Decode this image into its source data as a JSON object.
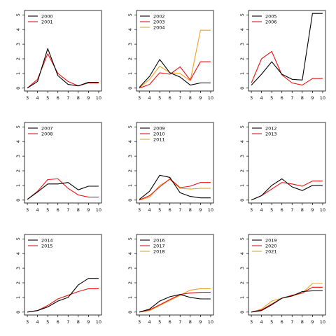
{
  "chart_data": [
    {
      "type": "line",
      "x": [
        3,
        4,
        5,
        6,
        7,
        8,
        9,
        10
      ],
      "y_ticks": [
        0,
        1,
        2,
        3,
        4,
        5
      ],
      "x_ticks": [
        3,
        4,
        5,
        6,
        7,
        8,
        9,
        10
      ],
      "ylim": [
        0,
        5.2
      ],
      "legend": "top-left",
      "series": [
        {
          "name": "2000",
          "color": "#000000",
          "values": [
            0.0,
            0.45,
            2.7,
            0.85,
            0.25,
            0.15,
            0.4,
            0.4
          ]
        },
        {
          "name": "2001",
          "color": "#ee1111",
          "values": [
            0.0,
            0.6,
            2.35,
            1.0,
            0.45,
            0.15,
            0.35,
            0.35
          ]
        }
      ]
    },
    {
      "type": "line",
      "x": [
        3,
        4,
        5,
        6,
        7,
        8,
        9,
        10
      ],
      "y_ticks": [
        0,
        1,
        2,
        3,
        4,
        5
      ],
      "x_ticks": [
        3,
        4,
        5,
        6,
        7,
        8,
        9,
        10
      ],
      "ylim": [
        0,
        5.2
      ],
      "legend": "top-left",
      "series": [
        {
          "name": "2002",
          "color": "#000000",
          "values": [
            0.05,
            0.8,
            1.95,
            1.05,
            0.75,
            0.2,
            0.35,
            0.35
          ]
        },
        {
          "name": "2003",
          "color": "#ee1111",
          "values": [
            0.0,
            0.25,
            1.05,
            0.95,
            1.45,
            0.55,
            1.8,
            1.8
          ]
        },
        {
          "name": "2004",
          "color": "#f0a020",
          "values": [
            0.0,
            0.6,
            1.5,
            1.05,
            1.0,
            0.5,
            3.95,
            3.95
          ]
        }
      ]
    },
    {
      "type": "line",
      "x": [
        3,
        4,
        5,
        6,
        7,
        8,
        9,
        10
      ],
      "y_ticks": [
        0,
        1,
        2,
        3,
        4,
        5
      ],
      "x_ticks": [
        3,
        4,
        5,
        6,
        7,
        8,
        9,
        10
      ],
      "ylim": [
        0,
        5.2
      ],
      "legend": "top-left",
      "series": [
        {
          "name": "2005",
          "color": "#000000",
          "values": [
            0.2,
            0.95,
            1.8,
            0.95,
            0.6,
            0.55,
            5.1,
            5.1
          ]
        },
        {
          "name": "2006",
          "color": "#ee1111",
          "values": [
            0.35,
            2.0,
            2.5,
            0.9,
            0.35,
            0.2,
            0.65,
            0.65
          ]
        }
      ]
    },
    {
      "type": "line",
      "x": [
        3,
        4,
        5,
        6,
        7,
        8,
        9,
        10
      ],
      "y_ticks": [
        0,
        1,
        2,
        3,
        4,
        5
      ],
      "x_ticks": [
        3,
        4,
        5,
        6,
        7,
        8,
        9,
        10
      ],
      "ylim": [
        0,
        5.2
      ],
      "legend": "top-left",
      "series": [
        {
          "name": "2007",
          "color": "#000000",
          "values": [
            0.05,
            0.55,
            1.1,
            1.1,
            1.2,
            0.7,
            0.95,
            0.95
          ]
        },
        {
          "name": "2008",
          "color": "#ee1111",
          "values": [
            0.05,
            0.6,
            1.4,
            1.45,
            0.8,
            0.35,
            0.2,
            0.2
          ]
        }
      ]
    },
    {
      "type": "line",
      "x": [
        3,
        4,
        5,
        6,
        7,
        8,
        9,
        10
      ],
      "y_ticks": [
        0,
        1,
        2,
        3,
        4,
        5
      ],
      "x_ticks": [
        3,
        4,
        5,
        6,
        7,
        8,
        9,
        10
      ],
      "ylim": [
        0,
        5.2
      ],
      "legend": "top-left",
      "series": [
        {
          "name": "2009",
          "color": "#000000",
          "values": [
            0.05,
            0.6,
            1.7,
            1.55,
            0.5,
            0.25,
            0.15,
            0.15
          ]
        },
        {
          "name": "2010",
          "color": "#ee1111",
          "values": [
            0.0,
            0.3,
            0.9,
            1.45,
            0.85,
            0.95,
            1.2,
            1.2
          ]
        },
        {
          "name": "2011",
          "color": "#f0a020",
          "values": [
            0.0,
            0.2,
            1.0,
            1.4,
            0.8,
            0.75,
            0.8,
            0.8
          ]
        }
      ]
    },
    {
      "type": "line",
      "x": [
        3,
        4,
        5,
        6,
        7,
        8,
        9,
        10
      ],
      "y_ticks": [
        0,
        1,
        2,
        3,
        4,
        5
      ],
      "x_ticks": [
        3,
        4,
        5,
        6,
        7,
        8,
        9,
        10
      ],
      "ylim": [
        0,
        5.2
      ],
      "legend": "top-left",
      "series": [
        {
          "name": "2012",
          "color": "#000000",
          "values": [
            0.0,
            0.3,
            1.0,
            1.45,
            0.9,
            0.65,
            1.0,
            1.0
          ]
        },
        {
          "name": "2013",
          "color": "#ee1111",
          "values": [
            0.0,
            0.3,
            0.75,
            1.2,
            1.1,
            0.95,
            1.3,
            1.3
          ]
        }
      ]
    },
    {
      "type": "line",
      "x": [
        3,
        4,
        5,
        6,
        7,
        8,
        9,
        10
      ],
      "y_ticks": [
        0,
        1,
        2,
        3,
        4,
        5
      ],
      "x_ticks": [
        3,
        4,
        5,
        6,
        7,
        8,
        9,
        10
      ],
      "ylim": [
        0,
        5.2
      ],
      "legend": "top-left",
      "series": [
        {
          "name": "2014",
          "color": "#000000",
          "values": [
            0.0,
            0.1,
            0.35,
            0.75,
            1.0,
            1.85,
            2.3,
            2.3
          ]
        },
        {
          "name": "2015",
          "color": "#ee1111",
          "values": [
            0.0,
            0.1,
            0.45,
            0.9,
            1.15,
            1.4,
            1.6,
            1.6
          ]
        }
      ]
    },
    {
      "type": "line",
      "x": [
        3,
        4,
        5,
        6,
        7,
        8,
        9,
        10
      ],
      "y_ticks": [
        0,
        1,
        2,
        3,
        4,
        5
      ],
      "x_ticks": [
        3,
        4,
        5,
        6,
        7,
        8,
        9,
        10
      ],
      "ylim": [
        0,
        5.2
      ],
      "legend": "top-left",
      "series": [
        {
          "name": "2016",
          "color": "#000000",
          "values": [
            0.0,
            0.2,
            0.75,
            1.05,
            1.2,
            1.0,
            0.9,
            0.9
          ]
        },
        {
          "name": "2017",
          "color": "#ee1111",
          "values": [
            0.0,
            0.15,
            0.5,
            0.85,
            1.2,
            1.3,
            1.35,
            1.35
          ]
        },
        {
          "name": "2018",
          "color": "#f0a020",
          "values": [
            0.0,
            0.1,
            0.45,
            0.8,
            1.15,
            1.5,
            1.6,
            1.6
          ]
        }
      ]
    },
    {
      "type": "line",
      "x": [
        3,
        4,
        5,
        6,
        7,
        8,
        9,
        10
      ],
      "y_ticks": [
        0,
        1,
        2,
        3,
        4,
        5
      ],
      "x_ticks": [
        3,
        4,
        5,
        6,
        7,
        8,
        9,
        10
      ],
      "ylim": [
        0,
        5.2
      ],
      "legend": "top-left",
      "series": [
        {
          "name": "2019",
          "color": "#000000",
          "values": [
            0.0,
            0.1,
            0.5,
            0.95,
            1.1,
            1.4,
            1.45,
            1.45
          ]
        },
        {
          "name": "2020",
          "color": "#ee1111",
          "values": [
            0.0,
            0.15,
            0.55,
            0.95,
            1.15,
            1.3,
            1.7,
            1.7
          ]
        },
        {
          "name": "2021",
          "color": "#f0a020",
          "values": [
            0.0,
            0.2,
            0.75,
            0.95,
            1.1,
            1.3,
            1.95,
            1.95
          ]
        }
      ]
    }
  ]
}
